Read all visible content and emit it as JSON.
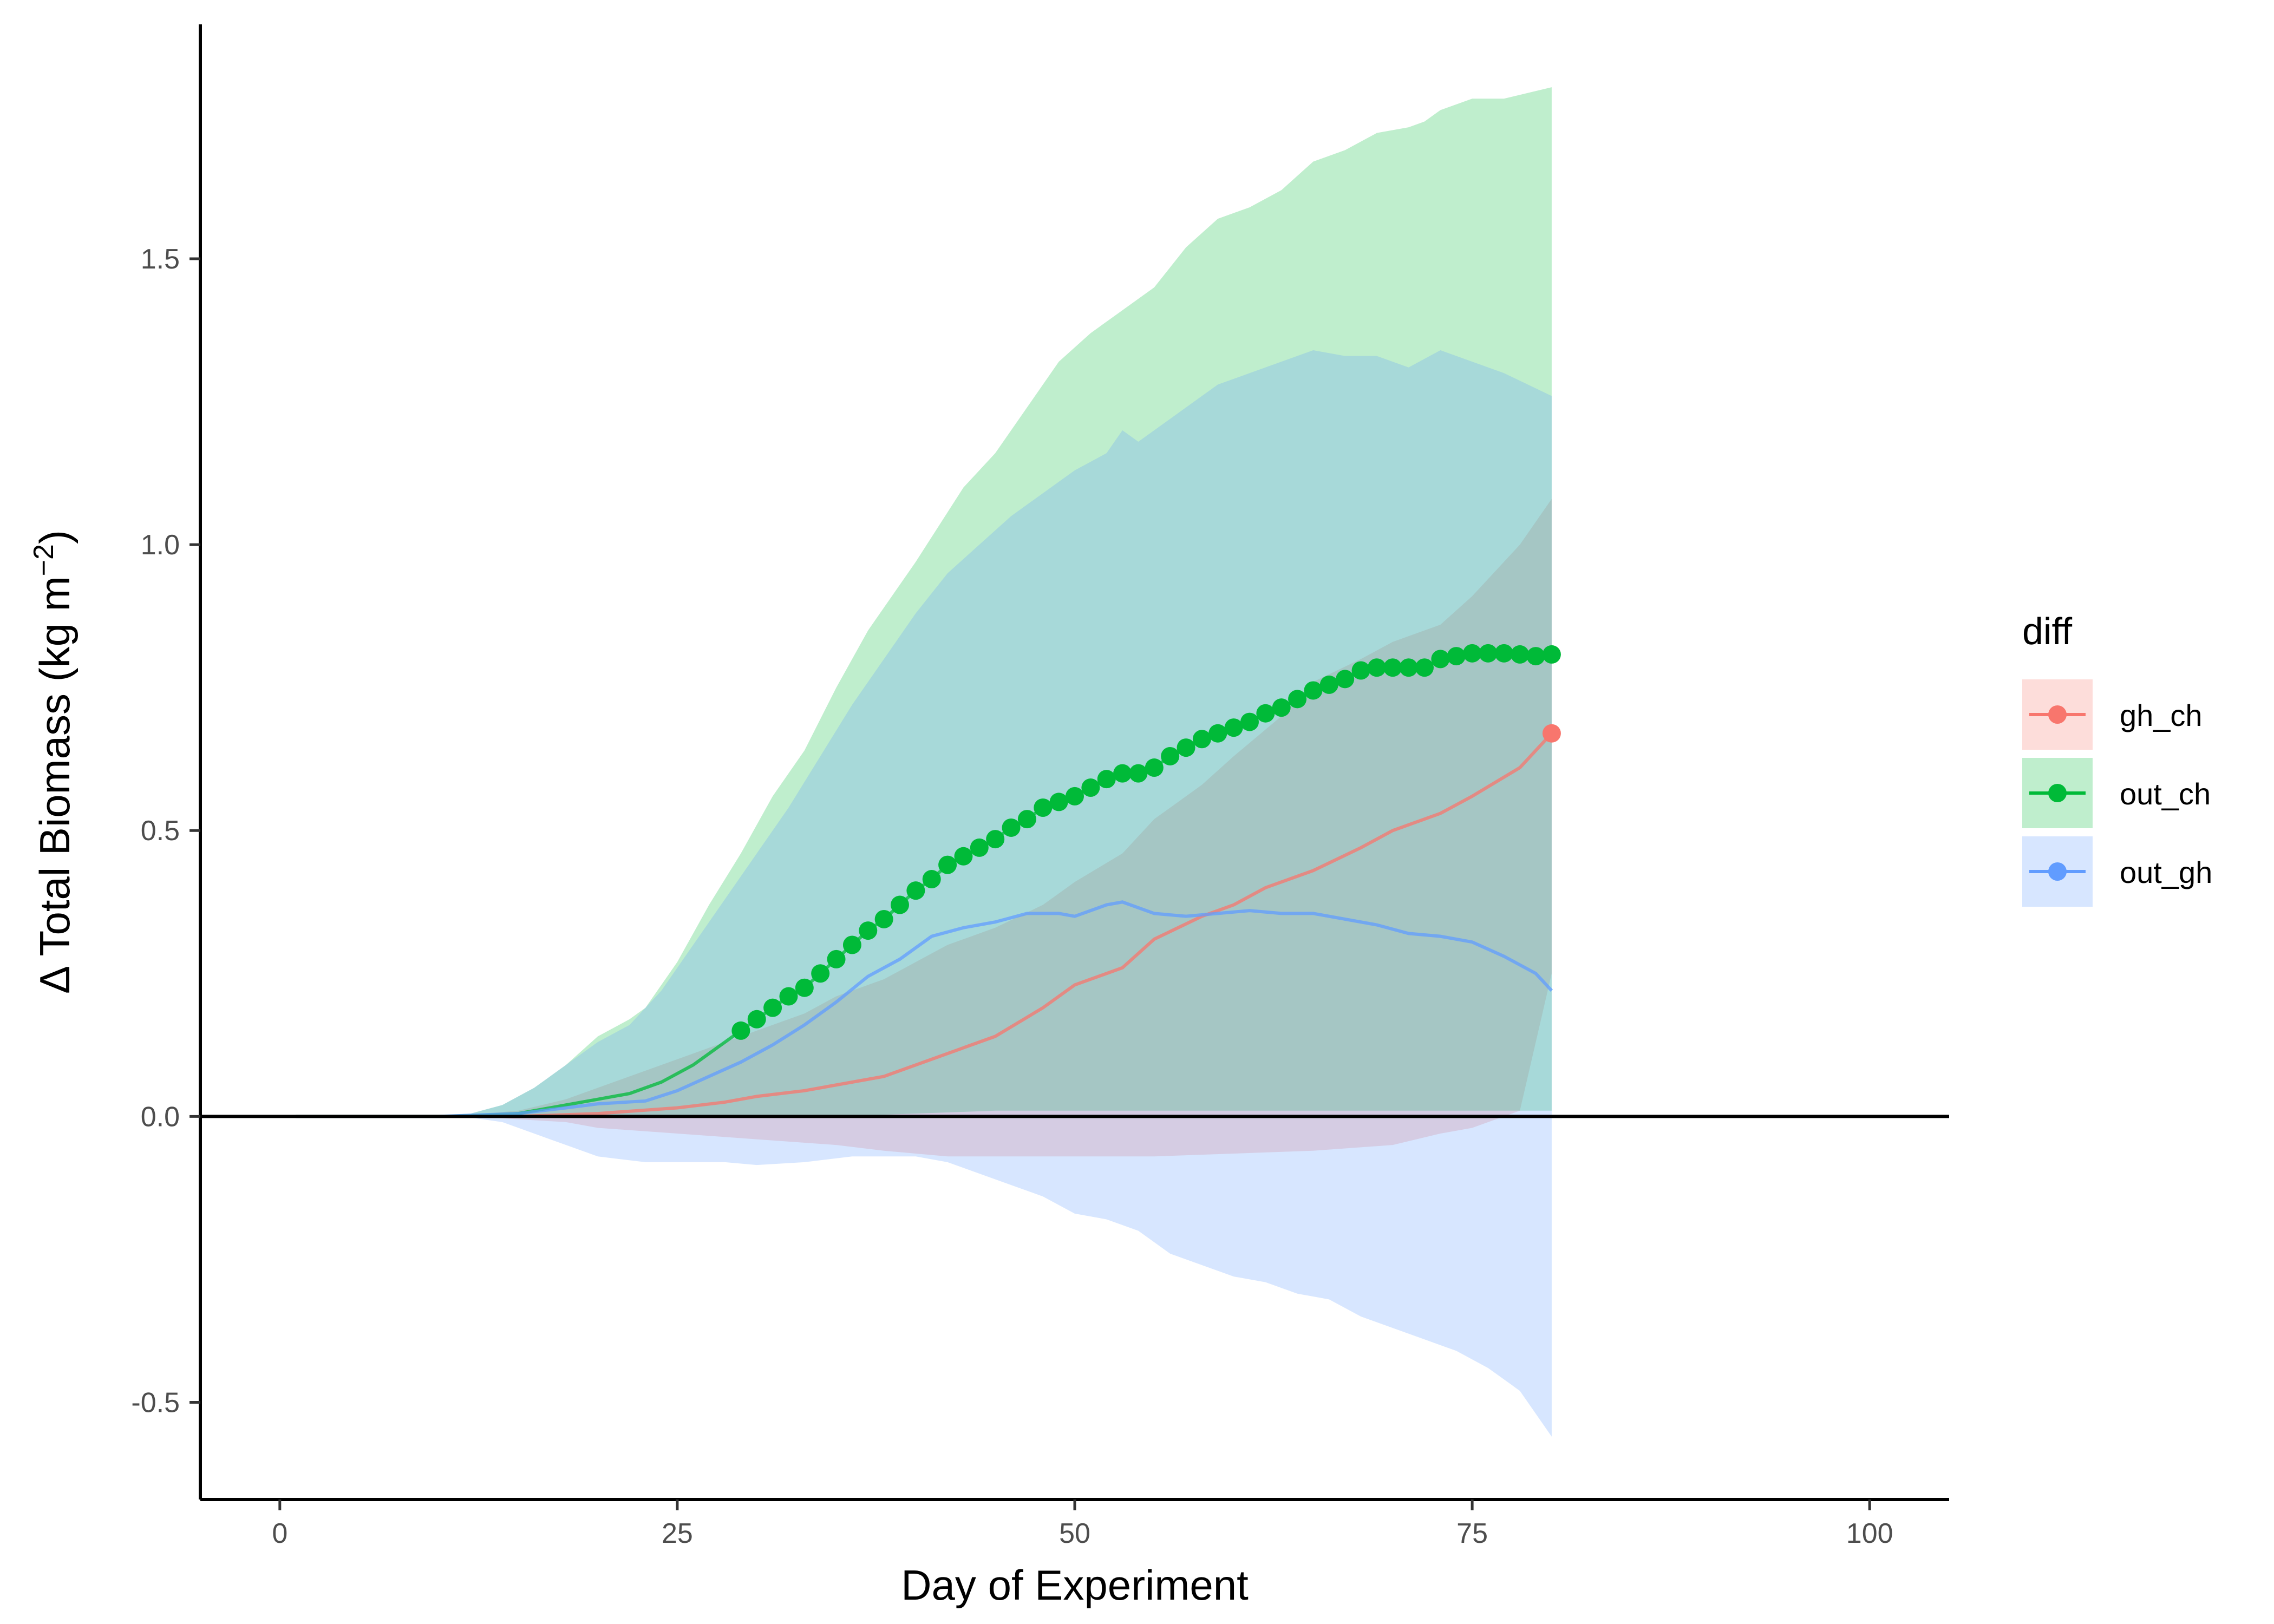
{
  "chart_data": {
    "type": "line",
    "title": "",
    "xlabel": "Day of Experiment",
    "ylabel": "Δ Total Biomass (kg m",
    "ylabel_sup": "−2",
    "ylabel_close": ")",
    "xlim": [
      -5,
      105
    ],
    "ylim": [
      -0.67,
      1.91
    ],
    "x_ticks": [
      0,
      25,
      50,
      75,
      100
    ],
    "y_ticks": [
      -0.5,
      0.0,
      0.5,
      1.0,
      1.5
    ],
    "x_tick_labels": [
      "0",
      "25",
      "50",
      "75",
      "100"
    ],
    "y_tick_labels": [
      "-0.5",
      "0.0",
      "0.5",
      "1.0",
      "1.5"
    ],
    "hline_y": 0,
    "grid": false,
    "legend": {
      "title": "diff",
      "position": "right",
      "entries": [
        "gh_ch",
        "out_ch",
        "out_gh"
      ]
    },
    "series": [
      {
        "name": "gh_ch",
        "color": "#F8766D",
        "band_color": "#F8766D",
        "points_at": [
          80
        ],
        "mean": [
          [
            1,
            0
          ],
          [
            10,
            0
          ],
          [
            15,
            0
          ],
          [
            20,
            0.005
          ],
          [
            25,
            0.015
          ],
          [
            28,
            0.025
          ],
          [
            30,
            0.035
          ],
          [
            33,
            0.045
          ],
          [
            35,
            0.055
          ],
          [
            38,
            0.07
          ],
          [
            40,
            0.09
          ],
          [
            42,
            0.11
          ],
          [
            45,
            0.14
          ],
          [
            48,
            0.19
          ],
          [
            50,
            0.23
          ],
          [
            53,
            0.26
          ],
          [
            55,
            0.31
          ],
          [
            58,
            0.35
          ],
          [
            60,
            0.37
          ],
          [
            62,
            0.4
          ],
          [
            65,
            0.43
          ],
          [
            68,
            0.47
          ],
          [
            70,
            0.5
          ],
          [
            73,
            0.53
          ],
          [
            75,
            0.56
          ],
          [
            78,
            0.61
          ],
          [
            80,
            0.67
          ]
        ],
        "upper": [
          [
            1,
            0
          ],
          [
            12,
            0.003
          ],
          [
            15,
            0.01
          ],
          [
            18,
            0.03
          ],
          [
            20,
            0.05
          ],
          [
            25,
            0.1
          ],
          [
            28,
            0.13
          ],
          [
            30,
            0.15
          ],
          [
            33,
            0.18
          ],
          [
            35,
            0.21
          ],
          [
            38,
            0.24
          ],
          [
            40,
            0.27
          ],
          [
            42,
            0.3
          ],
          [
            45,
            0.33
          ],
          [
            48,
            0.37
          ],
          [
            50,
            0.41
          ],
          [
            53,
            0.46
          ],
          [
            55,
            0.52
          ],
          [
            58,
            0.58
          ],
          [
            60,
            0.63
          ],
          [
            63,
            0.7
          ],
          [
            65,
            0.76
          ],
          [
            68,
            0.8
          ],
          [
            70,
            0.83
          ],
          [
            73,
            0.86
          ],
          [
            75,
            0.91
          ],
          [
            78,
            1.0
          ],
          [
            80,
            1.08
          ]
        ],
        "lower": [
          [
            1,
            0
          ],
          [
            12,
            0
          ],
          [
            15,
            -0.005
          ],
          [
            18,
            -0.01
          ],
          [
            20,
            -0.02
          ],
          [
            25,
            -0.03
          ],
          [
            30,
            -0.04
          ],
          [
            35,
            -0.05
          ],
          [
            38,
            -0.06
          ],
          [
            40,
            -0.065
          ],
          [
            42,
            -0.07
          ],
          [
            45,
            -0.07
          ],
          [
            50,
            -0.07
          ],
          [
            55,
            -0.07
          ],
          [
            60,
            -0.065
          ],
          [
            65,
            -0.06
          ],
          [
            70,
            -0.05
          ],
          [
            73,
            -0.03
          ],
          [
            75,
            -0.02
          ],
          [
            78,
            0.01
          ],
          [
            80,
            0.25
          ]
        ]
      },
      {
        "name": "out_ch",
        "color": "#00BA38",
        "band_color": "#00BA38",
        "points_from": 29,
        "mean": [
          [
            1,
            0
          ],
          [
            10,
            0
          ],
          [
            12,
            0.001
          ],
          [
            15,
            0.005
          ],
          [
            18,
            0.02
          ],
          [
            20,
            0.03
          ],
          [
            22,
            0.04
          ],
          [
            24,
            0.06
          ],
          [
            26,
            0.09
          ],
          [
            28,
            0.13
          ],
          [
            29,
            0.15
          ],
          [
            30,
            0.17
          ],
          [
            31,
            0.19
          ],
          [
            32,
            0.21
          ],
          [
            33,
            0.225
          ],
          [
            34,
            0.25
          ],
          [
            35,
            0.275
          ],
          [
            36,
            0.3
          ],
          [
            37,
            0.325
          ],
          [
            38,
            0.345
          ],
          [
            39,
            0.37
          ],
          [
            40,
            0.395
          ],
          [
            41,
            0.415
          ],
          [
            42,
            0.44
          ],
          [
            43,
            0.455
          ],
          [
            44,
            0.47
          ],
          [
            45,
            0.485
          ],
          [
            46,
            0.505
          ],
          [
            47,
            0.52
          ],
          [
            48,
            0.54
          ],
          [
            49,
            0.55
          ],
          [
            50,
            0.56
          ],
          [
            51,
            0.575
          ],
          [
            52,
            0.59
          ],
          [
            53,
            0.6
          ],
          [
            54,
            0.6
          ],
          [
            55,
            0.61
          ],
          [
            56,
            0.63
          ],
          [
            57,
            0.645
          ],
          [
            58,
            0.66
          ],
          [
            59,
            0.67
          ],
          [
            60,
            0.68
          ],
          [
            61,
            0.69
          ],
          [
            62,
            0.705
          ],
          [
            63,
            0.715
          ],
          [
            64,
            0.73
          ],
          [
            65,
            0.745
          ],
          [
            66,
            0.755
          ],
          [
            67,
            0.765
          ],
          [
            68,
            0.78
          ],
          [
            69,
            0.785
          ],
          [
            70,
            0.785
          ],
          [
            71,
            0.785
          ],
          [
            72,
            0.785
          ],
          [
            73,
            0.8
          ],
          [
            74,
            0.805
          ],
          [
            75,
            0.81
          ],
          [
            76,
            0.81
          ],
          [
            77,
            0.81
          ],
          [
            78,
            0.808
          ],
          [
            79,
            0.805
          ],
          [
            80,
            0.808
          ]
        ],
        "upper": [
          [
            1,
            0
          ],
          [
            10,
            0.002
          ],
          [
            12,
            0.005
          ],
          [
            14,
            0.02
          ],
          [
            16,
            0.05
          ],
          [
            18,
            0.09
          ],
          [
            20,
            0.14
          ],
          [
            22,
            0.17
          ],
          [
            23,
            0.19
          ],
          [
            25,
            0.27
          ],
          [
            27,
            0.37
          ],
          [
            29,
            0.46
          ],
          [
            31,
            0.56
          ],
          [
            33,
            0.64
          ],
          [
            35,
            0.75
          ],
          [
            37,
            0.85
          ],
          [
            40,
            0.97
          ],
          [
            43,
            1.1
          ],
          [
            45,
            1.16
          ],
          [
            47,
            1.24
          ],
          [
            49,
            1.32
          ],
          [
            51,
            1.37
          ],
          [
            53,
            1.41
          ],
          [
            55,
            1.45
          ],
          [
            57,
            1.52
          ],
          [
            59,
            1.57
          ],
          [
            61,
            1.59
          ],
          [
            63,
            1.62
          ],
          [
            65,
            1.67
          ],
          [
            67,
            1.69
          ],
          [
            69,
            1.72
          ],
          [
            71,
            1.73
          ],
          [
            72,
            1.74
          ],
          [
            73,
            1.76
          ],
          [
            75,
            1.78
          ],
          [
            77,
            1.78
          ],
          [
            80,
            1.8
          ]
        ],
        "lower": [
          [
            1,
            0
          ],
          [
            10,
            0
          ],
          [
            15,
            0
          ],
          [
            20,
            0
          ],
          [
            25,
            0
          ],
          [
            30,
            0
          ],
          [
            35,
            0
          ],
          [
            40,
            0.005
          ],
          [
            45,
            0.01
          ],
          [
            50,
            0.01
          ],
          [
            55,
            0.01
          ],
          [
            60,
            0.01
          ],
          [
            65,
            0.01
          ],
          [
            70,
            0.01
          ],
          [
            75,
            0.01
          ],
          [
            80,
            0.01
          ]
        ]
      },
      {
        "name": "out_gh",
        "color": "#619CFF",
        "band_color": "#619CFF",
        "points_at": [],
        "mean": [
          [
            1,
            0
          ],
          [
            10,
            0
          ],
          [
            12,
            0.002
          ],
          [
            15,
            0.005
          ],
          [
            18,
            0.015
          ],
          [
            20,
            0.022
          ],
          [
            23,
            0.027
          ],
          [
            25,
            0.045
          ],
          [
            27,
            0.07
          ],
          [
            29,
            0.095
          ],
          [
            31,
            0.125
          ],
          [
            33,
            0.16
          ],
          [
            35,
            0.2
          ],
          [
            37,
            0.245
          ],
          [
            39,
            0.275
          ],
          [
            41,
            0.315
          ],
          [
            43,
            0.33
          ],
          [
            45,
            0.34
          ],
          [
            47,
            0.355
          ],
          [
            49,
            0.355
          ],
          [
            50,
            0.35
          ],
          [
            52,
            0.37
          ],
          [
            53,
            0.375
          ],
          [
            55,
            0.355
          ],
          [
            57,
            0.35
          ],
          [
            59,
            0.355
          ],
          [
            61,
            0.36
          ],
          [
            63,
            0.355
          ],
          [
            65,
            0.355
          ],
          [
            67,
            0.345
          ],
          [
            69,
            0.335
          ],
          [
            71,
            0.32
          ],
          [
            73,
            0.315
          ],
          [
            75,
            0.305
          ],
          [
            77,
            0.28
          ],
          [
            79,
            0.25
          ],
          [
            80,
            0.22
          ]
        ],
        "upper": [
          [
            1,
            0
          ],
          [
            10,
            0.002
          ],
          [
            12,
            0.005
          ],
          [
            14,
            0.02
          ],
          [
            16,
            0.05
          ],
          [
            18,
            0.09
          ],
          [
            20,
            0.13
          ],
          [
            22,
            0.16
          ],
          [
            24,
            0.22
          ],
          [
            26,
            0.3
          ],
          [
            28,
            0.38
          ],
          [
            30,
            0.46
          ],
          [
            32,
            0.54
          ],
          [
            34,
            0.63
          ],
          [
            36,
            0.72
          ],
          [
            38,
            0.8
          ],
          [
            40,
            0.88
          ],
          [
            42,
            0.95
          ],
          [
            44,
            1.0
          ],
          [
            46,
            1.05
          ],
          [
            48,
            1.09
          ],
          [
            50,
            1.13
          ],
          [
            52,
            1.16
          ],
          [
            53,
            1.2
          ],
          [
            54,
            1.18
          ],
          [
            55,
            1.2
          ],
          [
            57,
            1.24
          ],
          [
            59,
            1.28
          ],
          [
            61,
            1.3
          ],
          [
            63,
            1.32
          ],
          [
            65,
            1.34
          ],
          [
            67,
            1.33
          ],
          [
            69,
            1.33
          ],
          [
            71,
            1.31
          ],
          [
            73,
            1.34
          ],
          [
            75,
            1.32
          ],
          [
            77,
            1.3
          ],
          [
            80,
            1.26
          ]
        ],
        "lower": [
          [
            1,
            0
          ],
          [
            10,
            0
          ],
          [
            12,
            -0.002
          ],
          [
            14,
            -0.01
          ],
          [
            16,
            -0.03
          ],
          [
            18,
            -0.05
          ],
          [
            20,
            -0.07
          ],
          [
            23,
            -0.08
          ],
          [
            25,
            -0.08
          ],
          [
            28,
            -0.08
          ],
          [
            30,
            -0.085
          ],
          [
            33,
            -0.08
          ],
          [
            36,
            -0.07
          ],
          [
            40,
            -0.07
          ],
          [
            42,
            -0.08
          ],
          [
            44,
            -0.1
          ],
          [
            46,
            -0.12
          ],
          [
            48,
            -0.14
          ],
          [
            50,
            -0.17
          ],
          [
            52,
            -0.18
          ],
          [
            54,
            -0.2
          ],
          [
            56,
            -0.24
          ],
          [
            58,
            -0.26
          ],
          [
            60,
            -0.28
          ],
          [
            62,
            -0.29
          ],
          [
            64,
            -0.31
          ],
          [
            66,
            -0.32
          ],
          [
            68,
            -0.35
          ],
          [
            70,
            -0.37
          ],
          [
            72,
            -0.39
          ],
          [
            74,
            -0.41
          ],
          [
            76,
            -0.44
          ],
          [
            78,
            -0.48
          ],
          [
            80,
            -0.56
          ]
        ]
      }
    ]
  }
}
